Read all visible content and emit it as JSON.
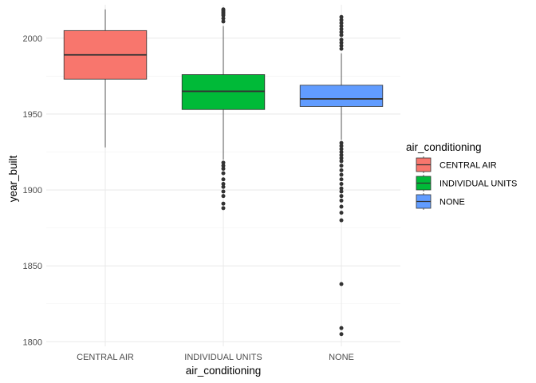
{
  "chart_data": {
    "type": "boxplot",
    "xlabel": "air_conditioning",
    "ylabel": "year_built",
    "ylim": [
      1797,
      2022
    ],
    "yticks": [
      1800,
      1850,
      1900,
      1950,
      2000
    ],
    "grid": true,
    "legend": {
      "title": "air_conditioning",
      "position": "right"
    },
    "categories": [
      "CENTRAL AIR",
      "INDIVIDUAL UNITS",
      "NONE"
    ],
    "series": [
      {
        "name": "CENTRAL AIR",
        "color": "#F8766D",
        "whisker_low": 1928,
        "q1": 1973,
        "median": 1989,
        "q3": 2005,
        "whisker_high": 2019,
        "outliers": []
      },
      {
        "name": "INDIVIDUAL UNITS",
        "color": "#00BA38",
        "whisker_low": 1920,
        "q1": 1953,
        "median": 1965,
        "q3": 1976,
        "whisker_high": 2008,
        "outliers": [
          1888,
          1891,
          1896,
          1899,
          1902,
          1904,
          1907,
          1911,
          1914,
          1916,
          1918,
          2011,
          2013,
          2015,
          2016,
          2017,
          2018,
          2019
        ]
      },
      {
        "name": "NONE",
        "color": "#619CFF",
        "whisker_low": 1933,
        "q1": 1955,
        "median": 1960,
        "q3": 1969,
        "whisker_high": 1990,
        "outliers": [
          1805,
          1809,
          1838,
          1880,
          1885,
          1889,
          1893,
          1896,
          1899,
          1901,
          1904,
          1907,
          1910,
          1913,
          1916,
          1919,
          1921,
          1923,
          1925,
          1927,
          1929,
          1931,
          1993,
          1995,
          1997,
          1999,
          2002,
          2004,
          2006,
          2008,
          2010,
          2012,
          2014
        ]
      }
    ]
  }
}
